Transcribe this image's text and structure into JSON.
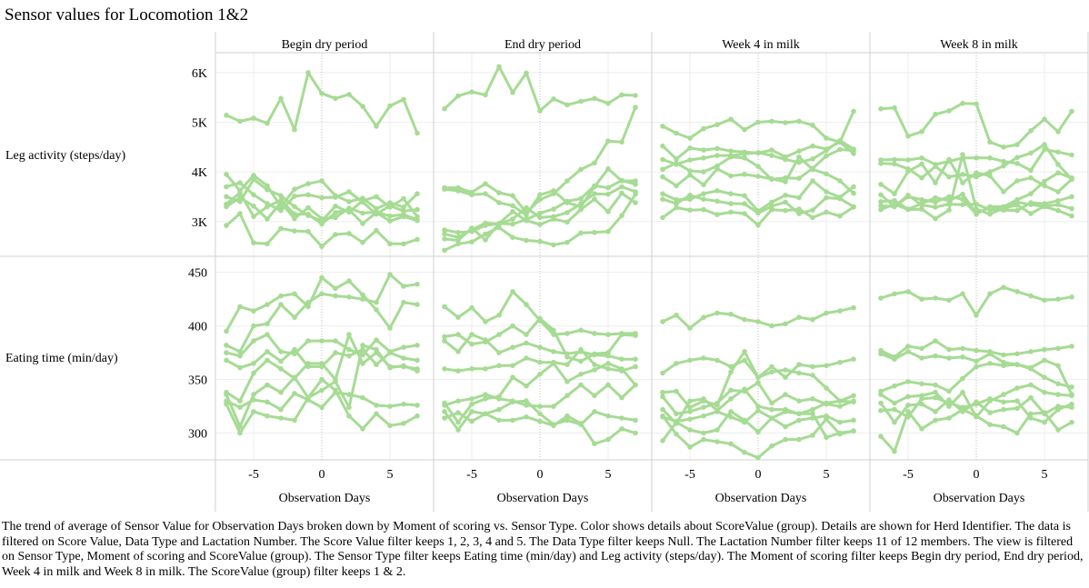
{
  "title": "Sensor values for Locomotion 1&2",
  "caption": "The trend of average of Sensor Value for Observation Days broken down by Moment of scoring vs. Sensor Type.  Color shows details about ScoreValue (group).  Details are shown for Herd Identifier. The data is filtered on Score Value, Data Type and Lactation Number. The Score Value filter keeps 1, 2, 3, 4 and 5. The Data Type filter keeps Null. The Lactation Number filter keeps 11 of 12 members. The view is filtered on Sensor Type, Moment of scoring and ScoreValue (group). The Sensor Type filter keeps Eating time (min/day) and Leg activity (steps/day). The Moment of scoring filter keeps Begin dry period, End dry period, Week 4 in milk and Week 8 in milk. The ScoreValue (group) filter keeps 1 & 2.",
  "colors": {
    "series": "#a6db94",
    "grid": "#eeeeee",
    "border": "#d0d0d0",
    "zero_line": "#bbbbbb"
  },
  "chart_data": {
    "type": "line",
    "columns": [
      "Begin dry period",
      "End dry period",
      "Week 4 in milk",
      "Week 8 in milk"
    ],
    "rows": [
      {
        "label": "Leg activity (steps/day)",
        "ylim": [
          2300,
          6400
        ],
        "ticks": [
          3000,
          4000,
          5000,
          6000
        ],
        "tick_labels": [
          "3K",
          "4K",
          "5K",
          "6K"
        ]
      },
      {
        "label": "Eating time (min/day)",
        "ylim": [
          275,
          465
        ],
        "ticks": [
          300,
          350,
          400,
          450
        ],
        "tick_labels": [
          "300",
          "350",
          "400",
          "450"
        ]
      }
    ],
    "xlabel": "Observation Days",
    "xlim": [
      -7.8,
      8.2
    ],
    "xticks": [
      -5,
      0,
      5
    ],
    "x": [
      -7,
      -6,
      -5,
      -4,
      -3,
      -2,
      -1,
      0,
      1,
      2,
      3,
      4,
      5,
      6,
      7
    ],
    "grid": true,
    "panels": [
      [
        [
          [
            5140,
            5020,
            5080,
            4980,
            5480,
            4850,
            6000,
            5580,
            5480,
            5560,
            5320,
            4920,
            5330,
            5460,
            4780
          ],
          [
            3950,
            3620,
            3930,
            3720,
            3300,
            3650,
            3760,
            3820,
            3520,
            3400,
            3470,
            3260,
            3380,
            3290,
            3560
          ],
          [
            3700,
            3780,
            3540,
            3360,
            3220,
            3510,
            3540,
            3480,
            3490,
            3600,
            3390,
            3150,
            3320,
            3210,
            3240
          ],
          [
            3500,
            3400,
            3850,
            3640,
            3520,
            3300,
            3120,
            3010,
            3310,
            3190,
            3420,
            3500,
            3290,
            3460,
            3100
          ],
          [
            3300,
            3480,
            3310,
            3050,
            3380,
            3060,
            3280,
            3060,
            3080,
            3270,
            3170,
            3190,
            3110,
            3140,
            3040
          ],
          [
            3350,
            3580,
            3100,
            3300,
            3430,
            3150,
            3150,
            2950,
            3180,
            3240,
            2960,
            3180,
            3010,
            3100,
            3020
          ],
          [
            2920,
            3160,
            2570,
            2550,
            2860,
            2810,
            2800,
            2500,
            2740,
            2760,
            2580,
            2820,
            2550,
            2550,
            2640
          ]
        ],
        [
          [
            5270,
            5530,
            5610,
            5550,
            6120,
            5600,
            5990,
            5230,
            5470,
            5350,
            5420,
            5480,
            5380,
            5550,
            5540
          ],
          [
            3680,
            3680,
            3590,
            3760,
            3580,
            3520,
            3180,
            3440,
            3560,
            3820,
            4050,
            4180,
            4620,
            4600,
            5300
          ],
          [
            3650,
            3620,
            3540,
            3560,
            3380,
            3320,
            3130,
            3540,
            3620,
            3380,
            3300,
            3700,
            4060,
            3820,
            3820
          ],
          [
            2830,
            2780,
            2800,
            2920,
            2960,
            2950,
            3040,
            3170,
            3250,
            3410,
            3460,
            3720,
            3680,
            3830,
            3750
          ],
          [
            2750,
            2680,
            2830,
            2970,
            2950,
            3050,
            3280,
            3080,
            3100,
            3180,
            3360,
            3560,
            3550,
            3700,
            3600
          ],
          [
            2650,
            2620,
            2870,
            2630,
            2960,
            3200,
            3020,
            2940,
            3050,
            2990,
            3240,
            3450,
            3200,
            3570,
            3380
          ],
          [
            2420,
            2550,
            2590,
            2750,
            2880,
            2680,
            2620,
            2600,
            2530,
            2580,
            2770,
            2780,
            2800,
            3120,
            3550
          ]
        ],
        [
          [
            4920,
            4780,
            4680,
            4870,
            4950,
            5060,
            4850,
            5000,
            5020,
            4990,
            5020,
            4940,
            4680,
            4600,
            5220
          ],
          [
            4520,
            4260,
            4480,
            4440,
            4470,
            4420,
            4400,
            4380,
            4440,
            4300,
            4420,
            4520,
            4460,
            4600,
            4370
          ],
          [
            4250,
            4150,
            4240,
            4280,
            4330,
            4330,
            4360,
            4390,
            4330,
            4250,
            4190,
            4260,
            4430,
            4630,
            4460
          ],
          [
            4050,
            4180,
            4020,
            4000,
            4120,
            4300,
            4280,
            4110,
            3850,
            3880,
            3870,
            4070,
            4320,
            4450,
            4430
          ],
          [
            3900,
            3720,
            3940,
            3740,
            4060,
            3920,
            3950,
            3910,
            3860,
            3800,
            4300,
            4050,
            3960,
            3820,
            3570
          ],
          [
            3560,
            3440,
            3450,
            3560,
            3620,
            3560,
            3520,
            3210,
            3390,
            3530,
            3480,
            3820,
            3600,
            3490,
            3700
          ],
          [
            3450,
            3360,
            3530,
            3450,
            3410,
            3360,
            3360,
            3170,
            3310,
            3390,
            3160,
            3230,
            3480,
            3460,
            3300
          ],
          [
            3080,
            3280,
            3230,
            3240,
            3140,
            3190,
            3160,
            2930,
            3240,
            3220,
            3250,
            3080,
            3190,
            3110,
            3290
          ]
        ],
        [
          [
            5270,
            5290,
            4720,
            4810,
            5160,
            5230,
            5380,
            5370,
            4600,
            4500,
            4550,
            4830,
            5060,
            4810,
            5220
          ],
          [
            4240,
            4250,
            4240,
            4280,
            4150,
            4210,
            4280,
            4280,
            4280,
            4210,
            4170,
            4030,
            4450,
            4400,
            4340
          ],
          [
            4170,
            4160,
            4060,
            3880,
            4110,
            3900,
            3950,
            3900,
            4000,
            4120,
            4290,
            4380,
            4550,
            4150,
            3850
          ],
          [
            3750,
            3560,
            4010,
            4160,
            3780,
            4250,
            3780,
            3980,
            3920,
            3600,
            3820,
            3880,
            3720,
            3600,
            3850
          ],
          [
            3540,
            3300,
            3500,
            3440,
            3390,
            3500,
            3450,
            3150,
            3300,
            3300,
            3440,
            3560,
            3810,
            3980,
            3880
          ],
          [
            3400,
            3420,
            3250,
            3360,
            3480,
            3420,
            3550,
            3170,
            3280,
            3230,
            3220,
            3380,
            3360,
            3420,
            3500
          ],
          [
            3320,
            3300,
            3530,
            3330,
            3290,
            3350,
            3340,
            3350,
            3240,
            3230,
            3390,
            3340,
            3300,
            3220,
            3110
          ],
          [
            3240,
            3350,
            3240,
            3250,
            3060,
            3230,
            4350,
            3250,
            3150,
            3270,
            3330,
            3160,
            3310,
            3340,
            3260
          ]
        ]
      ],
      [
        [
          [
            395,
            418,
            414,
            420,
            428,
            430,
            418,
            445,
            435,
            442,
            429,
            415,
            398,
            422,
            420
          ],
          [
            382,
            376,
            400,
            402,
            420,
            408,
            422,
            430,
            428,
            427,
            425,
            422,
            448,
            437,
            439
          ],
          [
            375,
            372,
            386,
            392,
            376,
            374,
            386,
            386,
            386,
            378,
            373,
            387,
            376,
            380,
            382
          ],
          [
            368,
            361,
            365,
            376,
            367,
            378,
            362,
            362,
            375,
            372,
            378,
            364,
            375,
            370,
            368
          ],
          [
            338,
            330,
            356,
            368,
            360,
            351,
            365,
            365,
            350,
            392,
            365,
            375,
            362,
            362,
            360
          ],
          [
            336,
            306,
            336,
            345,
            338,
            352,
            333,
            340,
            348,
            324,
            382,
            378,
            361,
            363,
            358
          ],
          [
            330,
            324,
            331,
            329,
            322,
            337,
            331,
            324,
            338,
            336,
            333,
            326,
            325,
            327,
            326
          ],
          [
            327,
            300,
            320,
            316,
            314,
            312,
            333,
            350,
            340,
            316,
            304,
            318,
            307,
            309,
            316
          ]
        ],
        [
          [
            418,
            408,
            417,
            404,
            410,
            432,
            420,
            405,
            392,
            393,
            396,
            393,
            392,
            393,
            393
          ],
          [
            390,
            392,
            383,
            385,
            392,
            400,
            392,
            407,
            396,
            371,
            367,
            374,
            375,
            392,
            391
          ],
          [
            386,
            376,
            392,
            387,
            375,
            380,
            384,
            380,
            376,
            374,
            376,
            373,
            372,
            369,
            369
          ],
          [
            360,
            358,
            360,
            360,
            363,
            363,
            370,
            366,
            366,
            364,
            378,
            364,
            360,
            358,
            362
          ],
          [
            328,
            310,
            327,
            332,
            334,
            352,
            344,
            355,
            365,
            348,
            355,
            359,
            365,
            360,
            345
          ],
          [
            326,
            330,
            332,
            336,
            332,
            330,
            326,
            325,
            325,
            335,
            345,
            335,
            345,
            333,
            345
          ],
          [
            320,
            303,
            320,
            318,
            322,
            329,
            330,
            318,
            308,
            312,
            308,
            320,
            316,
            314,
            312
          ],
          [
            314,
            319,
            311,
            318,
            312,
            312,
            315,
            311,
            307,
            316,
            309,
            290,
            294,
            304,
            300
          ]
        ],
        [
          [
            404,
            410,
            398,
            408,
            412,
            411,
            406,
            404,
            400,
            402,
            408,
            406,
            412,
            414,
            417
          ],
          [
            356,
            365,
            368,
            370,
            368,
            362,
            368,
            352,
            362,
            352,
            364,
            362,
            363,
            366,
            369
          ],
          [
            338,
            339,
            324,
            330,
            326,
            357,
            376,
            352,
            357,
            359,
            356,
            354,
            342,
            330,
            335
          ],
          [
            334,
            318,
            320,
            324,
            328,
            340,
            339,
            347,
            328,
            336,
            330,
            332,
            327,
            325,
            330
          ],
          [
            322,
            309,
            330,
            332,
            321,
            332,
            341,
            325,
            322,
            322,
            318,
            322,
            328,
            330,
            329
          ],
          [
            315,
            311,
            313,
            316,
            320,
            315,
            310,
            321,
            314,
            306,
            312,
            314,
            316,
            310,
            312
          ],
          [
            293,
            310,
            303,
            300,
            303,
            320,
            312,
            301,
            314,
            320,
            318,
            318,
            296,
            300,
            302
          ],
          [
            316,
            299,
            287,
            294,
            292,
            290,
            282,
            277,
            288,
            294,
            294,
            298,
            313,
            299,
            302
          ]
        ],
        [
          [
            426,
            430,
            432,
            425,
            426,
            424,
            430,
            410,
            430,
            436,
            432,
            428,
            424,
            425,
            427
          ],
          [
            377,
            371,
            381,
            379,
            386,
            378,
            379,
            377,
            376,
            373,
            374,
            376,
            378,
            379,
            381
          ],
          [
            374,
            369,
            376,
            370,
            372,
            370,
            371,
            367,
            374,
            366,
            364,
            360,
            352,
            346,
            343
          ],
          [
            339,
            344,
            348,
            346,
            345,
            339,
            351,
            362,
            365,
            363,
            364,
            361,
            368,
            363,
            336
          ],
          [
            336,
            328,
            334,
            335,
            338,
            325,
            338,
            315,
            330,
            336,
            342,
            345,
            338,
            336,
            335
          ],
          [
            328,
            310,
            326,
            327,
            320,
            331,
            320,
            329,
            319,
            322,
            323,
            333,
            318,
            325,
            324
          ],
          [
            321,
            322,
            315,
            332,
            333,
            328,
            324,
            327,
            332,
            329,
            330,
            314,
            310,
            322,
            327
          ],
          [
            297,
            283,
            320,
            304,
            312,
            314,
            322,
            316,
            308,
            306,
            300,
            318,
            319,
            303,
            310
          ]
        ]
      ]
    ]
  }
}
